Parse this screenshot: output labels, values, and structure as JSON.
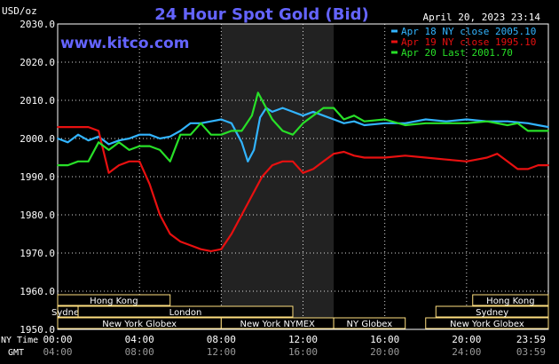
{
  "header": {
    "title": "24 Hour Spot Gold (Bid)",
    "unit_label": "USD/oz",
    "date_time": "April 20, 2023 23:14",
    "website": "www.kitco.com"
  },
  "colors": {
    "background": "#000000",
    "title": "#6464ff",
    "grid": "#ffffff",
    "night_shade": "#222222",
    "series_apr18": "#32b4ff",
    "series_apr19": "#e81010",
    "series_apr20": "#28e028",
    "session_box_fill": "#000000",
    "session_box_stroke": "#ffe080",
    "session_text": "#ffffff"
  },
  "axis_titles": {
    "ny_time": "NY Time",
    "gmt": "GMT"
  },
  "ny_time_ticks": [
    "00:00",
    "04:00",
    "08:00",
    "12:00",
    "16:00",
    "20:00",
    "23:59"
  ],
  "gmt_ticks": [
    "04:00",
    "08:00",
    "12:00",
    "16:00",
    "20:00",
    "24:00",
    "03:59"
  ],
  "sessions": [
    {
      "label": "Hong Kong",
      "start": 0,
      "end": 5.5,
      "row": 0
    },
    {
      "label": "Sydney",
      "start": 0,
      "end": 1.0,
      "row": 1
    },
    {
      "label": "London",
      "start": 1.0,
      "end": 11.5,
      "row": 1
    },
    {
      "label": "New York Globex",
      "start": 0,
      "end": 8.0,
      "row": 2
    },
    {
      "label": "New York NYMEX",
      "start": 8.0,
      "end": 13.5,
      "row": 2
    },
    {
      "label": "NY Globex",
      "start": 13.5,
      "end": 17.0,
      "row": 2
    },
    {
      "label": "Hong Kong",
      "start": 20.3,
      "end": 24.0,
      "row": 0
    },
    {
      "label": "Sydney",
      "start": 18.5,
      "end": 24.0,
      "row": 1
    },
    {
      "label": "New York Globex",
      "start": 18.0,
      "end": 24.0,
      "row": 2
    }
  ],
  "chart_data": {
    "type": "line",
    "title": "24 Hour Spot Gold (Bid)",
    "ylabel": "USD/oz",
    "ylim": [
      1950,
      2030
    ],
    "yticks": [
      "2030.0",
      "2020.0",
      "2010.0",
      "2000.0",
      "1990.0",
      "1980.0",
      "1970.0",
      "1960.0",
      "1950.0"
    ],
    "xlim": [
      0,
      24
    ],
    "x_unit": "hours NY time",
    "shaded_interval": [
      8.0,
      13.5
    ],
    "legend": [
      "Apr 18 NY close 2005.10",
      "Apr 19 NY close 1995.10",
      "Apr 20 Last 2001.70"
    ],
    "series": [
      {
        "name": "Apr 18 NY close 2005.10",
        "color": "#32b4ff",
        "x": [
          0,
          0.5,
          1,
          1.5,
          2,
          2.5,
          3,
          3.5,
          4,
          4.5,
          5,
          5.5,
          6,
          6.5,
          7,
          7.5,
          8,
          8.5,
          9,
          9.3,
          9.6,
          9.9,
          10.2,
          10.5,
          11,
          11.5,
          12,
          12.5,
          13,
          13.5,
          14,
          14.5,
          15,
          16,
          17,
          18,
          19,
          20,
          21,
          22,
          23,
          23.5,
          24
        ],
        "y": [
          2000,
          1999,
          2001,
          1999.5,
          2000.5,
          1998.5,
          1999.5,
          2000,
          2001,
          2001,
          2000,
          2000.5,
          2002,
          2004,
          2004,
          2004.5,
          2005,
          2004,
          1999,
          1994,
          1997,
          2005.5,
          2008,
          2007,
          2008,
          2007,
          2006,
          2007,
          2006,
          2005,
          2004,
          2004.5,
          2003.5,
          2004,
          2004,
          2005,
          2004.5,
          2005,
          2004.5,
          2004.5,
          2004,
          2003.5,
          2003
        ]
      },
      {
        "name": "Apr 19 NY close 1995.10",
        "color": "#e81010",
        "x": [
          0,
          0.5,
          1,
          1.5,
          2,
          2.5,
          3,
          3.5,
          4,
          4.5,
          5,
          5.5,
          6,
          6.5,
          7,
          7.5,
          8,
          8.5,
          9,
          9.5,
          10,
          10.5,
          11,
          11.5,
          12,
          12.5,
          13,
          13.5,
          14,
          14.5,
          15,
          16,
          17,
          18,
          19,
          20,
          20.5,
          21,
          21.5,
          22,
          22.5,
          23,
          23.5,
          24
        ],
        "y": [
          2003,
          2003,
          2003,
          2003,
          2002,
          1991,
          1993,
          1994,
          1994,
          1988,
          1980,
          1975,
          1973,
          1972,
          1971,
          1970.5,
          1971,
          1975,
          1980,
          1985,
          1990,
          1993,
          1994,
          1994,
          1991,
          1992,
          1994,
          1996,
          1996.5,
          1995.5,
          1995,
          1995,
          1995.5,
          1995,
          1994.5,
          1994,
          1994.5,
          1995,
          1996,
          1994,
          1992,
          1992,
          1993,
          1993
        ]
      },
      {
        "name": "Apr 20 Last 2001.70",
        "color": "#28e028",
        "x": [
          0,
          0.5,
          1,
          1.5,
          2,
          2.5,
          3,
          3.5,
          4,
          4.5,
          5,
          5.5,
          6,
          6.5,
          7,
          7.5,
          8,
          8.5,
          9,
          9.5,
          9.8,
          10.2,
          10.5,
          11,
          11.5,
          12,
          12.5,
          13,
          13.5,
          14,
          14.5,
          15,
          16,
          17,
          18,
          19,
          20,
          21,
          22,
          22.5,
          23,
          23.5,
          24
        ],
        "y": [
          1993,
          1993,
          1994,
          1994,
          1999,
          1997,
          1999,
          1997,
          1998,
          1998,
          1997,
          1994,
          2001,
          2001,
          2004,
          2001,
          2001,
          2002,
          2002,
          2006,
          2012,
          2008,
          2005,
          2002,
          2001,
          2004,
          2006,
          2008,
          2008,
          2005,
          2006,
          2004.5,
          2005,
          2003.5,
          2004,
          2004,
          2004,
          2004.5,
          2003.5,
          2004,
          2002,
          2002,
          2002
        ]
      }
    ]
  }
}
